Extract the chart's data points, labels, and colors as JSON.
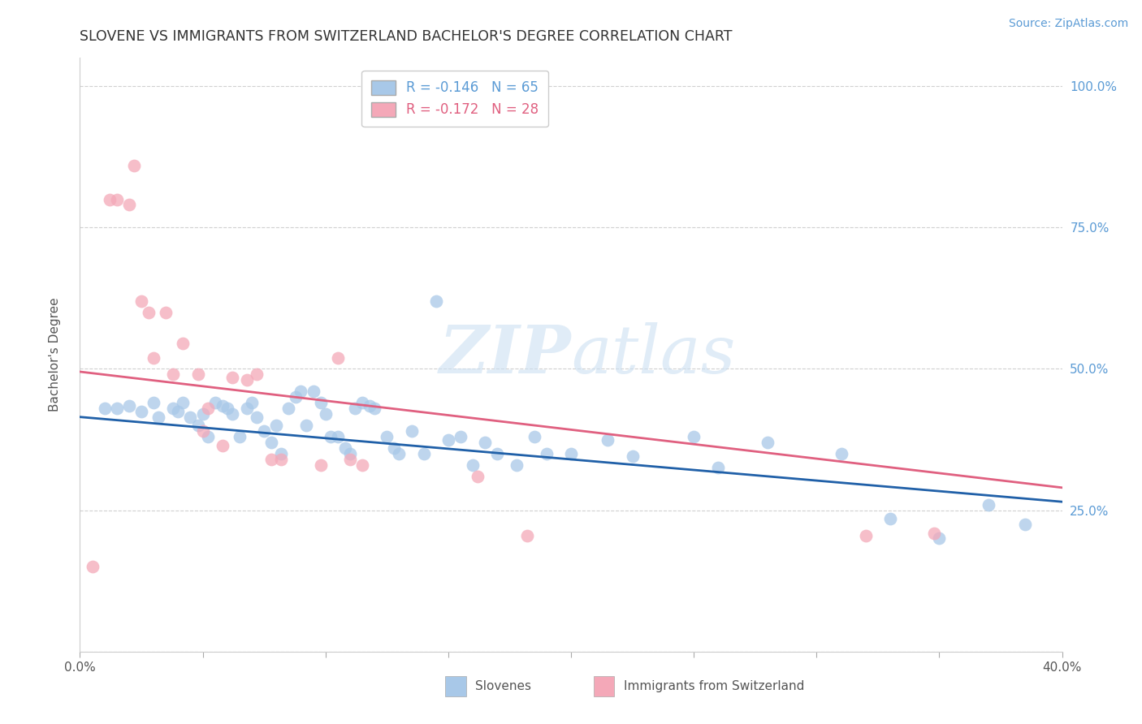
{
  "title": "SLOVENE VS IMMIGRANTS FROM SWITZERLAND BACHELOR'S DEGREE CORRELATION CHART",
  "source": "Source: ZipAtlas.com",
  "ylabel": "Bachelor's Degree",
  "xlim": [
    0.0,
    0.4
  ],
  "ylim": [
    0.0,
    1.05
  ],
  "legend_blue_r": "R = -0.146",
  "legend_blue_n": "N = 65",
  "legend_pink_r": "R = -0.172",
  "legend_pink_n": "N = 28",
  "blue_color": "#a8c8e8",
  "pink_color": "#f4a8b8",
  "line_blue": "#2060a8",
  "line_pink": "#e06080",
  "right_tick_color": "#5b9bd5",
  "watermark_color": "#cce0f0",
  "blue_scatter_x": [
    0.01,
    0.015,
    0.02,
    0.025,
    0.03,
    0.032,
    0.038,
    0.04,
    0.042,
    0.045,
    0.048,
    0.05,
    0.052,
    0.055,
    0.058,
    0.06,
    0.062,
    0.065,
    0.068,
    0.07,
    0.072,
    0.075,
    0.078,
    0.08,
    0.082,
    0.085,
    0.088,
    0.09,
    0.092,
    0.095,
    0.098,
    0.1,
    0.102,
    0.105,
    0.108,
    0.11,
    0.112,
    0.115,
    0.118,
    0.12,
    0.125,
    0.128,
    0.13,
    0.135,
    0.14,
    0.145,
    0.15,
    0.155,
    0.16,
    0.165,
    0.17,
    0.178,
    0.185,
    0.19,
    0.2,
    0.215,
    0.225,
    0.25,
    0.26,
    0.28,
    0.31,
    0.33,
    0.35,
    0.37,
    0.385
  ],
  "blue_scatter_y": [
    0.43,
    0.43,
    0.435,
    0.425,
    0.44,
    0.415,
    0.43,
    0.425,
    0.44,
    0.415,
    0.4,
    0.42,
    0.38,
    0.44,
    0.435,
    0.43,
    0.42,
    0.38,
    0.43,
    0.44,
    0.415,
    0.39,
    0.37,
    0.4,
    0.35,
    0.43,
    0.45,
    0.46,
    0.4,
    0.46,
    0.44,
    0.42,
    0.38,
    0.38,
    0.36,
    0.35,
    0.43,
    0.44,
    0.435,
    0.43,
    0.38,
    0.36,
    0.35,
    0.39,
    0.35,
    0.62,
    0.375,
    0.38,
    0.33,
    0.37,
    0.35,
    0.33,
    0.38,
    0.35,
    0.35,
    0.375,
    0.345,
    0.38,
    0.325,
    0.37,
    0.35,
    0.235,
    0.2,
    0.26,
    0.225
  ],
  "pink_scatter_x": [
    0.005,
    0.012,
    0.015,
    0.02,
    0.022,
    0.025,
    0.028,
    0.03,
    0.035,
    0.038,
    0.042,
    0.048,
    0.05,
    0.052,
    0.058,
    0.062,
    0.068,
    0.072,
    0.078,
    0.082,
    0.098,
    0.105,
    0.11,
    0.115,
    0.162,
    0.182,
    0.32,
    0.348
  ],
  "pink_scatter_y": [
    0.15,
    0.8,
    0.8,
    0.79,
    0.86,
    0.62,
    0.6,
    0.52,
    0.6,
    0.49,
    0.545,
    0.49,
    0.39,
    0.43,
    0.365,
    0.485,
    0.48,
    0.49,
    0.34,
    0.34,
    0.33,
    0.52,
    0.34,
    0.33,
    0.31,
    0.205,
    0.205,
    0.21
  ],
  "blue_line_x": [
    0.0,
    0.4
  ],
  "blue_line_y": [
    0.415,
    0.265
  ],
  "pink_line_x": [
    0.0,
    0.4
  ],
  "pink_line_y": [
    0.495,
    0.29
  ]
}
